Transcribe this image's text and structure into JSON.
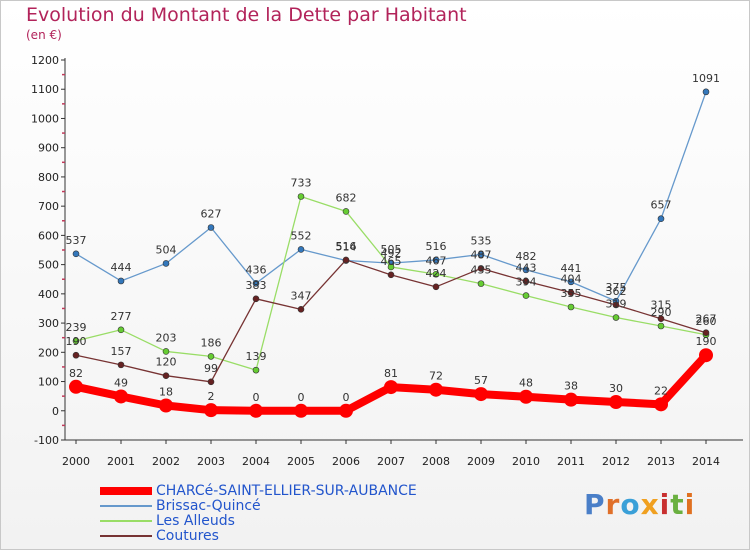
{
  "header": {
    "title": "Evolution du Montant de la Dette par Habitant",
    "unit": "(en €)"
  },
  "logo": {
    "text": "Proxiti"
  },
  "colors": {
    "title": "#b2235a",
    "legend_text": "#2255cc",
    "axis": "#333333",
    "grid": "#dddddd"
  },
  "chart_data": {
    "type": "line",
    "title": "Evolution du Montant de la Dette par Habitant",
    "ylabel": "(en €)",
    "xlabel": "",
    "categories": [
      "2000",
      "2001",
      "2002",
      "2003",
      "2004",
      "2005",
      "2006",
      "2007",
      "2008",
      "2009",
      "2010",
      "2011",
      "2012",
      "2013",
      "2014"
    ],
    "ylim": [
      -100,
      1200
    ],
    "yticks": [
      -100,
      0,
      100,
      200,
      300,
      400,
      500,
      600,
      700,
      800,
      900,
      1000,
      1100,
      1200
    ],
    "grid": false,
    "legend_position": "bottom-left",
    "series": [
      {
        "name": "CHARCé-SAINT-ELLIER-SUR-AUBANCE",
        "color": "#ff0000",
        "width": 8,
        "marker": 7,
        "labels": true,
        "values": [
          82,
          49,
          18,
          2,
          0,
          0,
          0,
          81,
          72,
          57,
          48,
          38,
          30,
          22,
          190
        ]
      },
      {
        "name": "Brissac-Quincé",
        "color": "#6699cc",
        "marker_color": "#3377bb",
        "width": 1.3,
        "marker": 3,
        "labels": true,
        "values": [
          537,
          444,
          504,
          627,
          436,
          552,
          514,
          505,
          516,
          535,
          482,
          441,
          375,
          657,
          1091
        ]
      },
      {
        "name": "Les Alleuds",
        "color": "#99dd66",
        "marker_color": "#66cc33",
        "width": 1.3,
        "marker": 3,
        "labels": true,
        "values": [
          239,
          277,
          203,
          186,
          139,
          733,
          682,
          492,
          467,
          435,
          394,
          355,
          319,
          290,
          260
        ]
      },
      {
        "name": "Coutures",
        "color": "#773333",
        "marker_color": "#662222",
        "width": 1.3,
        "marker": 3,
        "labels": true,
        "values": [
          190,
          157,
          120,
          99,
          383,
          347,
          516,
          465,
          424,
          487,
          443,
          404,
          362,
          315,
          267
        ]
      }
    ]
  }
}
